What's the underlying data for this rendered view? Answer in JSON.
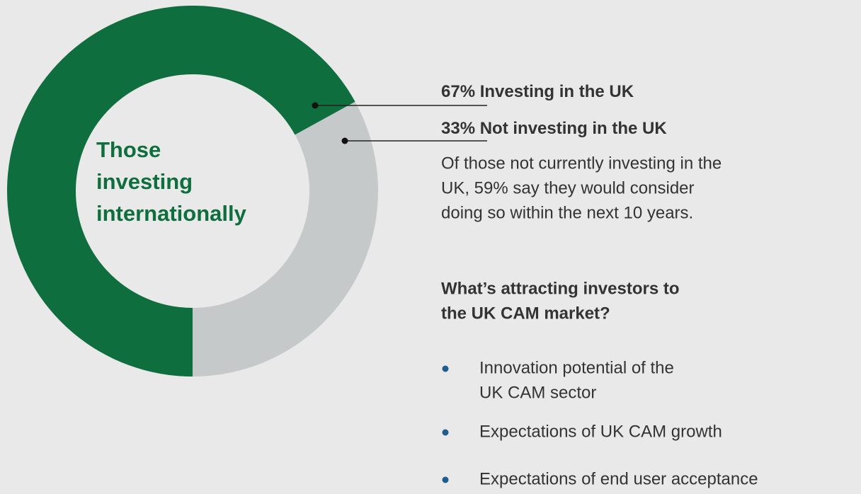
{
  "chart_data": {
    "type": "pie",
    "donut": true,
    "categories": [
      "Investing in the UK",
      "Not investing in the UK"
    ],
    "values": [
      67,
      33
    ],
    "value_labels": [
      "67%",
      "33%"
    ],
    "colors": [
      "#0f6e3e",
      "#c6c9ca"
    ],
    "center_label": [
      "Those",
      "investing",
      "internationally"
    ],
    "note": [
      "Of those not currently investing in the",
      "UK, 59% say they would consider",
      "doing so within the next 10 years."
    ]
  },
  "sidebar": {
    "heading": [
      "What’s attracting investors to",
      "the UK CAM market?"
    ],
    "bullets": [
      [
        "Innovation potential of the",
        "UK CAM sector"
      ],
      [
        "Expectations of UK CAM growth"
      ],
      [
        "Expectations of end user acceptance"
      ]
    ]
  }
}
